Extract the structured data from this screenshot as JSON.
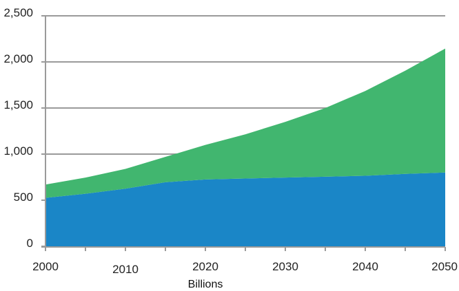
{
  "chart_data": {
    "type": "area",
    "stacked": true,
    "x": [
      2000,
      2005,
      2010,
      2015,
      2020,
      2025,
      2030,
      2035,
      2040,
      2045,
      2050
    ],
    "series": [
      {
        "values": [
          525,
          570,
          625,
          695,
          725,
          735,
          745,
          755,
          765,
          785,
          800
        ],
        "color": "#1a86c7"
      },
      {
        "values": [
          145,
          175,
          215,
          275,
          375,
          480,
          605,
          745,
          920,
          1120,
          1345
        ],
        "color": "#41b66f"
      }
    ],
    "xlim": [
      2000,
      2050
    ],
    "ylim": [
      0,
      2500
    ],
    "x_ticks": [
      "2000",
      "2010",
      "2020",
      "2030",
      "2040",
      "2050"
    ],
    "y_ticks": [
      "0",
      "500",
      "1,000",
      "1,500",
      "2,000",
      "2,500"
    ],
    "xlabel": "Billions",
    "ylabel": "",
    "title": "",
    "grid": "horizontal",
    "legend": "none"
  }
}
